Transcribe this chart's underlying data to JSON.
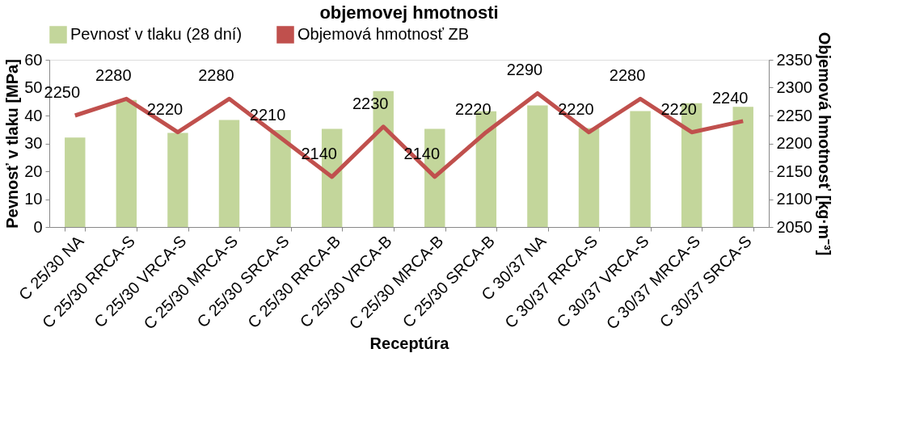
{
  "chart_data": {
    "type": "bar",
    "title": "objemovej hmotnosti",
    "xlabel": "Receptúra",
    "ylabel": "Pevnosť v tlaku [MPa]",
    "y2label": "Objemová hmotnosť [kg·m⁻³]",
    "categories": [
      "C 25/30 NA",
      "C 25/30 RRCA-S",
      "C 25/30 VRCA-S",
      "C 25/30 MRCA-S",
      "C 25/30 SRCA-S",
      "C 25/30 RRCA-B",
      "C 25/30 VRCA-B",
      "C 25/30 MRCA-B",
      "C 25/30 SRCA-B",
      "C 30/37 NA",
      "C 30/37 RRCA-S",
      "C 30/37 VRCA-S",
      "C 30/37 MRCA-S",
      "C 30/37 SRCA-S"
    ],
    "series": [
      {
        "name": "Pevnosť v tlaku (28 dní)",
        "color": "#c3d69b",
        "values": [
          32.1,
          45.6,
          33.8,
          38.4,
          34.8,
          35.2,
          48.8,
          35.2,
          41.5,
          43.6,
          35.5,
          41.6,
          44.4,
          43.1
        ]
      },
      {
        "name": "Objemová hmotnosť ZB",
        "type": "line",
        "axis": "y2",
        "color": "#c0504d",
        "data_labels": true,
        "values": [
          2250,
          2280,
          2220,
          2280,
          2210,
          2140,
          2230,
          2140,
          2220,
          2290,
          2220,
          2280,
          2220,
          2240
        ]
      }
    ],
    "ylim": [
      0,
      60
    ],
    "yticks": [
      0,
      10,
      20,
      30,
      40,
      50,
      60
    ],
    "y2lim": [
      2050,
      2350
    ],
    "y2ticks": [
      2050,
      2100,
      2150,
      2200,
      2250,
      2300,
      2350
    ],
    "grid": false,
    "legend": "top",
    "marker": "none",
    "line_style": "solid"
  }
}
